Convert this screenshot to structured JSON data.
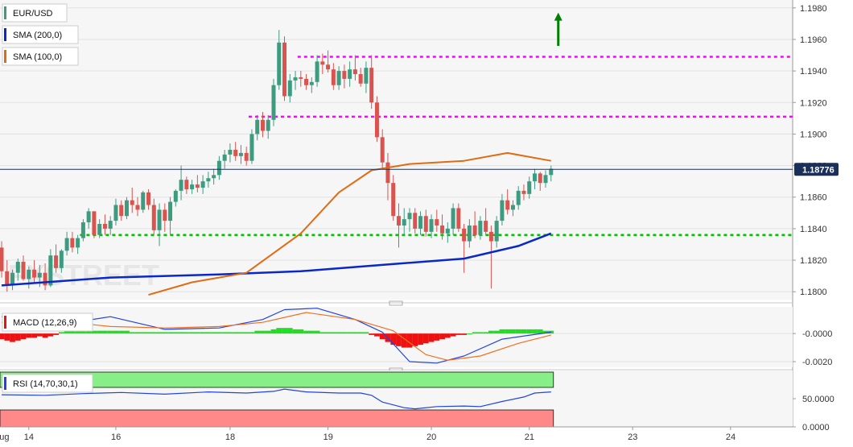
{
  "chart_data": {
    "type": "candlestick",
    "main": {
      "y_ticks": [
        "1.1980",
        "1.1960",
        "1.1940",
        "1.1920",
        "1.1900",
        "1.1880",
        "1.1860",
        "1.1840",
        "1.1820",
        "1.1800"
      ],
      "ylim": [
        1.1795,
        1.1985
      ],
      "last_price": "1.18776",
      "ohlc": [
        [
          1.1828,
          1.1832,
          1.1809,
          1.1813
        ],
        [
          1.1813,
          1.182,
          1.18,
          1.1804
        ],
        [
          1.1804,
          1.1814,
          1.1801,
          1.1812
        ],
        [
          1.1812,
          1.1821,
          1.1807,
          1.1819
        ],
        [
          1.1819,
          1.1823,
          1.1807,
          1.1808
        ],
        [
          1.1808,
          1.1816,
          1.1802,
          1.1814
        ],
        [
          1.1814,
          1.182,
          1.1805,
          1.1809
        ],
        [
          1.1809,
          1.1817,
          1.1803,
          1.1812
        ],
        [
          1.1812,
          1.1818,
          1.1801,
          1.1804
        ],
        [
          1.1804,
          1.1827,
          1.1803,
          1.1823
        ],
        [
          1.1823,
          1.183,
          1.1812,
          1.1815
        ],
        [
          1.1815,
          1.1827,
          1.1812,
          1.1826
        ],
        [
          1.1826,
          1.1838,
          1.1823,
          1.1834
        ],
        [
          1.1834,
          1.1838,
          1.1825,
          1.1828
        ],
        [
          1.1828,
          1.1836,
          1.1824,
          1.1834
        ],
        [
          1.1834,
          1.1846,
          1.1832,
          1.1844
        ],
        [
          1.1844,
          1.1853,
          1.184,
          1.1851
        ],
        [
          1.1851,
          1.1851,
          1.1834,
          1.1836
        ],
        [
          1.1836,
          1.1846,
          1.1834,
          1.1843
        ],
        [
          1.1843,
          1.1849,
          1.1836,
          1.184
        ],
        [
          1.184,
          1.1848,
          1.1836,
          1.1845
        ],
        [
          1.1845,
          1.1859,
          1.1842,
          1.1855
        ],
        [
          1.1855,
          1.1858,
          1.1845,
          1.1848
        ],
        [
          1.1848,
          1.186,
          1.1846,
          1.1858
        ],
        [
          1.1858,
          1.1866,
          1.185,
          1.1855
        ],
        [
          1.1855,
          1.186,
          1.1848,
          1.1852
        ],
        [
          1.1852,
          1.1864,
          1.185,
          1.1863
        ],
        [
          1.1863,
          1.1865,
          1.1852,
          1.1855
        ],
        [
          1.1855,
          1.1859,
          1.1836,
          1.1839
        ],
        [
          1.1839,
          1.1856,
          1.1829,
          1.1852
        ],
        [
          1.1852,
          1.1856,
          1.1838,
          1.1845
        ],
        [
          1.1845,
          1.186,
          1.1836,
          1.1857
        ],
        [
          1.1857,
          1.1865,
          1.1854,
          1.1864
        ],
        [
          1.1864,
          1.188,
          1.1858,
          1.1871
        ],
        [
          1.1871,
          1.1873,
          1.1862,
          1.1865
        ],
        [
          1.1865,
          1.1871,
          1.1862,
          1.1868
        ],
        [
          1.1868,
          1.1874,
          1.1863,
          1.1866
        ],
        [
          1.1866,
          1.1874,
          1.1862,
          1.187
        ],
        [
          1.187,
          1.1876,
          1.1866,
          1.1872
        ],
        [
          1.1872,
          1.1878,
          1.1868,
          1.1874
        ],
        [
          1.1874,
          1.1886,
          1.1871,
          1.1883
        ],
        [
          1.1883,
          1.189,
          1.1878,
          1.1887
        ],
        [
          1.1887,
          1.1894,
          1.1882,
          1.189
        ],
        [
          1.189,
          1.1895,
          1.1883,
          1.1886
        ],
        [
          1.1886,
          1.1893,
          1.1881,
          1.1888
        ],
        [
          1.1888,
          1.1892,
          1.188,
          1.1883
        ],
        [
          1.1883,
          1.1903,
          1.1881,
          1.19
        ],
        [
          1.19,
          1.1912,
          1.1896,
          1.1909
        ],
        [
          1.1909,
          1.1914,
          1.1898,
          1.1902
        ],
        [
          1.1902,
          1.1912,
          1.1897,
          1.1909
        ],
        [
          1.1909,
          1.1935,
          1.1905,
          1.1931
        ],
        [
          1.1931,
          1.1966,
          1.1928,
          1.1958
        ],
        [
          1.1958,
          1.1962,
          1.1921,
          1.1924
        ],
        [
          1.1924,
          1.1938,
          1.192,
          1.1934
        ],
        [
          1.1934,
          1.194,
          1.1928,
          1.1936
        ],
        [
          1.1936,
          1.194,
          1.193,
          1.1935
        ],
        [
          1.1935,
          1.1938,
          1.1928,
          1.1931
        ],
        [
          1.1931,
          1.1936,
          1.1926,
          1.1933
        ],
        [
          1.1933,
          1.195,
          1.193,
          1.1946
        ],
        [
          1.1946,
          1.1951,
          1.1938,
          1.1944
        ],
        [
          1.1944,
          1.1953,
          1.1939,
          1.1941
        ],
        [
          1.1941,
          1.1945,
          1.1928,
          1.1931
        ],
        [
          1.1931,
          1.1943,
          1.1928,
          1.194
        ],
        [
          1.194,
          1.1944,
          1.1929,
          1.1935
        ],
        [
          1.1935,
          1.1946,
          1.193,
          1.1941
        ],
        [
          1.1941,
          1.195,
          1.1934,
          1.1938
        ],
        [
          1.1938,
          1.1942,
          1.193,
          1.1932
        ],
        [
          1.1932,
          1.1946,
          1.1926,
          1.1942
        ],
        [
          1.1942,
          1.195,
          1.1916,
          1.192
        ],
        [
          1.192,
          1.1924,
          1.1895,
          1.1898
        ],
        [
          1.1898,
          1.1903,
          1.1878,
          1.1882
        ],
        [
          1.1882,
          1.1888,
          1.1858,
          1.1869
        ],
        [
          1.1869,
          1.1874,
          1.1845,
          1.1848
        ],
        [
          1.1848,
          1.1856,
          1.1828,
          1.1842
        ],
        [
          1.1842,
          1.1853,
          1.1836,
          1.1846
        ],
        [
          1.1846,
          1.1853,
          1.1838,
          1.185
        ],
        [
          1.185,
          1.1853,
          1.1837,
          1.184
        ],
        [
          1.184,
          1.1851,
          1.1836,
          1.1848
        ],
        [
          1.1848,
          1.1852,
          1.1835,
          1.1838
        ],
        [
          1.1838,
          1.1849,
          1.1834,
          1.1846
        ],
        [
          1.1846,
          1.1852,
          1.1838,
          1.1842
        ],
        [
          1.1842,
          1.1849,
          1.1833,
          1.1837
        ],
        [
          1.1837,
          1.1844,
          1.1831,
          1.184
        ],
        [
          1.184,
          1.1856,
          1.1836,
          1.1853
        ],
        [
          1.1853,
          1.1856,
          1.1838,
          1.184
        ],
        [
          1.184,
          1.1843,
          1.1812,
          1.1832
        ],
        [
          1.1832,
          1.1846,
          1.1828,
          1.1842
        ],
        [
          1.1842,
          1.1851,
          1.1834,
          1.1836
        ],
        [
          1.1836,
          1.1848,
          1.1833,
          1.1845
        ],
        [
          1.1845,
          1.1853,
          1.1836,
          1.1838
        ],
        [
          1.1838,
          1.1842,
          1.1802,
          1.1832
        ],
        [
          1.1832,
          1.1848,
          1.1828,
          1.1845
        ],
        [
          1.1845,
          1.1862,
          1.1842,
          1.1858
        ],
        [
          1.1858,
          1.1865,
          1.1849,
          1.1852
        ],
        [
          1.1852,
          1.1858,
          1.1848,
          1.1855
        ],
        [
          1.1855,
          1.1867,
          1.1852,
          1.1864
        ],
        [
          1.1864,
          1.1868,
          1.1858,
          1.1862
        ],
        [
          1.1862,
          1.1873,
          1.1859,
          1.187
        ],
        [
          1.187,
          1.1878,
          1.1865,
          1.1875
        ],
        [
          1.1875,
          1.1876,
          1.1864,
          1.1869
        ],
        [
          1.1869,
          1.1877,
          1.1866,
          1.1874
        ],
        [
          1.1874,
          1.188,
          1.187,
          1.1878
        ]
      ],
      "sma200": [
        [
          0,
          1.1804
        ],
        [
          20,
          1.1809
        ],
        [
          40,
          1.1811
        ],
        [
          55,
          1.1813
        ],
        [
          70,
          1.1817
        ],
        [
          85,
          1.1821
        ],
        [
          95,
          1.1829
        ],
        [
          101,
          1.1837
        ]
      ],
      "sma100": [
        [
          27,
          1.1798
        ],
        [
          35,
          1.1806
        ],
        [
          45,
          1.1812
        ],
        [
          55,
          1.1837
        ],
        [
          62,
          1.1863
        ],
        [
          68,
          1.1877
        ],
        [
          75,
          1.1881
        ],
        [
          85,
          1.1883
        ],
        [
          93,
          1.1888
        ],
        [
          101,
          1.1883
        ]
      ],
      "hlines": [
        {
          "name": "resistance-2",
          "y": 1.1949,
          "color": "#ff00ff",
          "from_bar": 55
        },
        {
          "name": "resistance-1",
          "y": 1.1911,
          "color": "#ff00ff",
          "from_bar": 46
        },
        {
          "name": "support",
          "y": 1.1836,
          "color": "#00c000",
          "from_bar": 15
        }
      ],
      "arrow": {
        "bar": 101,
        "y_from": 1.196,
        "y_to": 1.1975,
        "color": "#008000"
      }
    },
    "x_ticks": [
      {
        "label": "Aug",
        "bar": -1.5
      },
      {
        "label": "14",
        "bar": 5
      },
      {
        "label": "16",
        "bar": 21
      },
      {
        "label": "18",
        "bar": 42
      },
      {
        "label": "19",
        "bar": 60
      },
      {
        "label": "20",
        "bar": 79
      },
      {
        "label": "21",
        "bar": 97
      },
      {
        "label": "23",
        "bar": 116
      },
      {
        "label": "24",
        "bar": 134
      }
    ],
    "macd": {
      "label": "MACD (12,26,9)",
      "y_ticks": [
        "-0.0000",
        "-0.0020"
      ],
      "ylim": [
        -0.0024,
        0.0019
      ],
      "macd": [
        [
          0,
          0.0012
        ],
        [
          10,
          0.0006
        ],
        [
          20,
          0.0012
        ],
        [
          30,
          0.0003
        ],
        [
          40,
          0.0004
        ],
        [
          48,
          0.001
        ],
        [
          52,
          0.0017
        ],
        [
          58,
          0.0018
        ],
        [
          65,
          0.001
        ],
        [
          70,
          0.0001
        ],
        [
          75,
          -0.002
        ],
        [
          80,
          -0.0021
        ],
        [
          85,
          -0.0016
        ],
        [
          92,
          -0.0004
        ],
        [
          101,
          0.0001
        ]
      ],
      "signal": [
        [
          0,
          0.0008
        ],
        [
          10,
          0.0009
        ],
        [
          20,
          0.0005
        ],
        [
          30,
          0.0004
        ],
        [
          40,
          0.0005
        ],
        [
          48,
          0.0008
        ],
        [
          56,
          0.0015
        ],
        [
          65,
          0.001
        ],
        [
          72,
          0.0002
        ],
        [
          78,
          -0.0015
        ],
        [
          82,
          -0.0019
        ],
        [
          88,
          -0.0016
        ],
        [
          95,
          -0.0007
        ],
        [
          101,
          -0.0001
        ]
      ],
      "histogram": [
        -0.0004,
        -0.0005,
        -0.0006,
        -0.0005,
        -0.0004,
        -0.0003,
        -0.0003,
        -0.0002,
        -0.0003,
        -0.0002,
        -0.0001,
        0.0001,
        0.0002,
        0.0003,
        0.0003,
        0.0003,
        0.0003,
        0.0002,
        0.0002,
        0.0002,
        0.0002,
        0.0002,
        0.0002,
        0.0002,
        0.0001,
        0.0001,
        0.0001,
        0.0001,
        0.0001,
        0.0001,
        0.0001,
        0.0001,
        0.0001,
        0.0001,
        0.0001,
        0.0001,
        0.0001,
        0.0001,
        0.0001,
        0.0001,
        0.0001,
        0.0001,
        0.0001,
        0.0001,
        0.0001,
        0.0001,
        0.0001,
        0.0002,
        0.0002,
        0.0002,
        0.0003,
        0.0004,
        0.0004,
        0.0004,
        0.0003,
        0.0003,
        0.0002,
        0.0002,
        0.0002,
        0.0001,
        0.0001,
        0.0001,
        0.0001,
        0.0001,
        0.0001,
        0.0001,
        0.0001,
        0.0001,
        -0.0001,
        -0.0002,
        -0.0004,
        -0.0006,
        -0.0008,
        -0.0009,
        -0.001,
        -0.001,
        -0.0009,
        -0.0008,
        -0.0007,
        -0.0006,
        -0.0005,
        -0.0004,
        -0.0003,
        -0.0002,
        -0.0001,
        -0.0001,
        0.0,
        0.0001,
        0.0001,
        0.0001,
        0.0002,
        0.0002,
        0.0003,
        0.0003,
        0.0003,
        0.0003,
        0.0003,
        0.0003,
        0.0003,
        0.0003,
        0.0002,
        0.0002
      ]
    },
    "rsi": {
      "label": "RSI (14,70,30,1)",
      "y_ticks": [
        "50.0000",
        "0.0000"
      ],
      "ylim": [
        0,
        100
      ],
      "overbought": 70,
      "oversold": 30,
      "values": [
        [
          0,
          57
        ],
        [
          8,
          56
        ],
        [
          15,
          59
        ],
        [
          22,
          61
        ],
        [
          30,
          58
        ],
        [
          38,
          62
        ],
        [
          45,
          60
        ],
        [
          50,
          63
        ],
        [
          52,
          67
        ],
        [
          56,
          62
        ],
        [
          62,
          60
        ],
        [
          66,
          60
        ],
        [
          68,
          56
        ],
        [
          70,
          44
        ],
        [
          74,
          34
        ],
        [
          76,
          32
        ],
        [
          80,
          36
        ],
        [
          85,
          37
        ],
        [
          88,
          36
        ],
        [
          92,
          45
        ],
        [
          96,
          53
        ],
        [
          98,
          60
        ],
        [
          101,
          62
        ]
      ]
    },
    "legend": {
      "symbol": "EUR/USD",
      "sma200": "SMA (200,0)",
      "sma100": "SMA (100,0)"
    },
    "watermark": "FXSTREET",
    "colors": {
      "up": "#3d9b80",
      "down": "#d9534f",
      "sma200": "#0a28c8",
      "sma100": "#e06b12",
      "macd_line": "#2244dd",
      "signal_line": "#f07020",
      "hist_up": "#22dd22",
      "hist_down": "#ee1111",
      "rsi_line": "#2244dd",
      "rsi_ob": "#88ee88",
      "rsi_os": "#ff8888",
      "price_tag": "#1a2f5a",
      "price_line": "#1a2f5a"
    }
  }
}
